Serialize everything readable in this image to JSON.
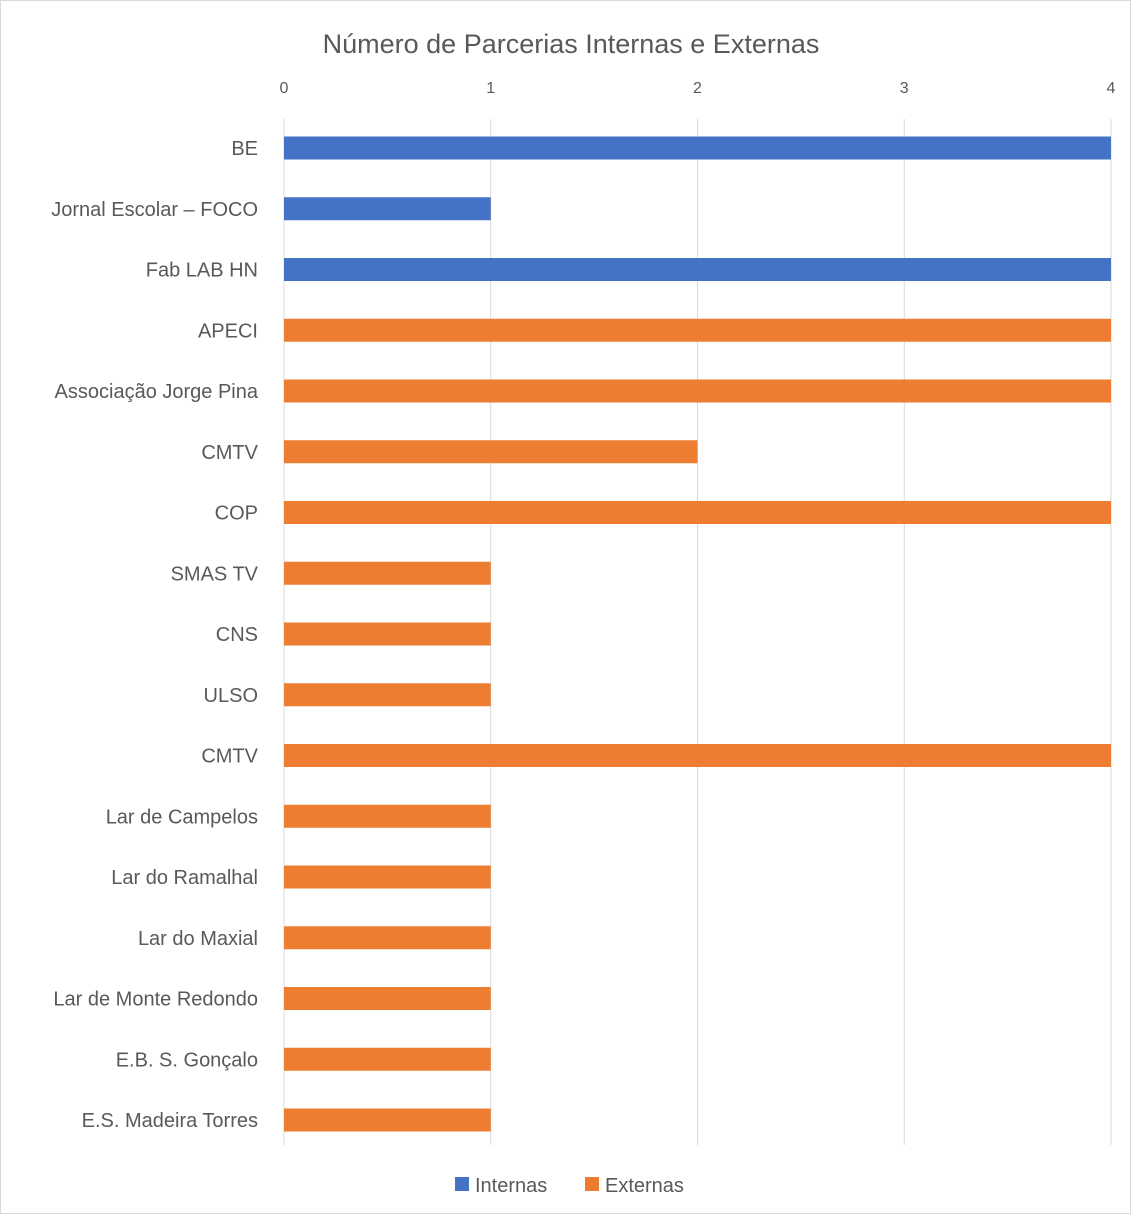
{
  "chart_data": {
    "type": "bar",
    "orientation": "horizontal",
    "title": "Número de Parcerias Internas e Externas",
    "xlabel": "",
    "ylabel": "",
    "xlim": [
      0,
      4
    ],
    "x_ticks": [
      "0",
      "1",
      "2",
      "3",
      "4"
    ],
    "x_axis_position": "top",
    "grid": true,
    "legend_position": "bottom",
    "categories": [
      "BE",
      "Jornal Escolar – FOCO",
      "Fab LAB HN",
      "APECI",
      "Associação Jorge Pina",
      "CMTV",
      "COP",
      "SMAS TV",
      "CNS",
      "ULSO",
      "CMTV",
      "Lar de Campelos",
      "Lar do Ramalhal",
      "Lar do Maxial",
      "Lar de Monte Redondo",
      "E.B. S. Gonçalo",
      "E.S. Madeira Torres"
    ],
    "values": [
      4,
      1,
      4,
      4,
      4,
      2,
      4,
      1,
      1,
      1,
      4,
      1,
      1,
      1,
      1,
      1,
      1
    ],
    "series_membership": [
      "Internas",
      "Internas",
      "Internas",
      "Externas",
      "Externas",
      "Externas",
      "Externas",
      "Externas",
      "Externas",
      "Externas",
      "Externas",
      "Externas",
      "Externas",
      "Externas",
      "Externas",
      "Externas",
      "Externas"
    ],
    "series": [
      {
        "name": "Internas",
        "color": "#4472c4"
      },
      {
        "name": "Externas",
        "color": "#ed7d31"
      }
    ]
  }
}
